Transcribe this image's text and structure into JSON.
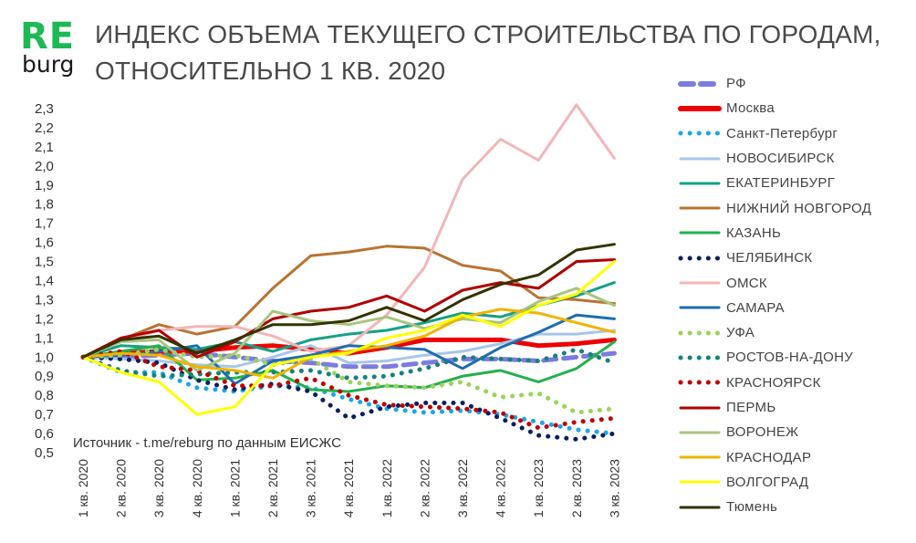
{
  "logo": {
    "re": "RE",
    "burg": "burg"
  },
  "title": {
    "line1": "ИНДЕКС ОБЪЕМА ТЕКУЩЕГО СТРОИТЕЛЬСТВА ПО ГОРОДАМ,",
    "line2": "ОТНОСИТЕЛЬНО 1 КВ. 2020"
  },
  "chart_data": {
    "type": "line",
    "title": "ИНДЕКС ОБЪЕМА ТЕКУЩЕГО СТРОИТЕЛЬСТВА ПО ГОРОДАМ, ОТНОСИТЕЛЬНО 1 КВ. 2020",
    "source": "Источник - t.me/reburg по данным ЕИСЖС",
    "ylim": [
      0.5,
      2.3
    ],
    "yticks": [
      "2,3",
      "2,2",
      "2,1",
      "2,0",
      "1,9",
      "1,8",
      "1,7",
      "1,6",
      "1,5",
      "1,4",
      "1,3",
      "1,2",
      "1,1",
      "1,0",
      "0,9",
      "0,8",
      "0,7",
      "0,6",
      "0,5"
    ],
    "categories": [
      "1 кв. 2020",
      "2 кв. 2020",
      "3 кв. 2020",
      "4 кв. 2020",
      "1 кв. 2021",
      "2 кв. 2021",
      "3 кв. 2021",
      "4 кв. 2021",
      "1 кв. 2022",
      "2 кв. 2022",
      "3 кв. 2022",
      "4 кв. 2022",
      "1 кв. 2023",
      "2 кв. 2023",
      "3 кв. 2023"
    ],
    "legend_position": "right",
    "grid": false,
    "series": [
      {
        "name": "РФ",
        "color": "#7b7be0",
        "style": "dashed",
        "values": [
          1.0,
          1.0,
          1.01,
          1.02,
          1.0,
          0.98,
          0.97,
          0.95,
          0.95,
          0.97,
          0.99,
          0.99,
          0.98,
          1.0,
          1.02
        ]
      },
      {
        "name": "Москва",
        "color": "#ee0000",
        "style": "thick",
        "values": [
          1.0,
          1.02,
          1.03,
          1.03,
          1.05,
          1.06,
          1.04,
          1.02,
          1.05,
          1.09,
          1.09,
          1.09,
          1.06,
          1.07,
          1.09
        ]
      },
      {
        "name": "Санкт-Петербург",
        "color": "#1aa7e8",
        "style": "dotted",
        "values": [
          1.0,
          0.92,
          0.92,
          0.84,
          0.82,
          0.85,
          0.84,
          0.78,
          0.73,
          0.71,
          0.72,
          0.7,
          0.66,
          0.62,
          0.6
        ]
      },
      {
        "name": "НОВОСИБИРСК",
        "color": "#a7c6e8",
        "style": "solid",
        "values": [
          1.0,
          0.99,
          0.98,
          0.96,
          0.95,
          1.0,
          1.06,
          0.97,
          0.98,
          1.01,
          1.03,
          1.07,
          1.12,
          1.12,
          1.14
        ]
      },
      {
        "name": "ЕКАТЕРИНБУРГ",
        "color": "#16a085",
        "style": "solid",
        "values": [
          1.0,
          1.06,
          1.05,
          1.04,
          1.08,
          1.03,
          1.09,
          1.12,
          1.14,
          1.18,
          1.23,
          1.21,
          1.27,
          1.32,
          1.39
        ]
      },
      {
        "name": "НИЖНИЙ НОВГОРОД",
        "color": "#b87333",
        "style": "solid",
        "values": [
          1.0,
          1.09,
          1.17,
          1.12,
          1.16,
          1.36,
          1.53,
          1.55,
          1.58,
          1.57,
          1.48,
          1.45,
          1.31,
          1.3,
          1.28
        ]
      },
      {
        "name": "КАЗАНЬ",
        "color": "#22b14c",
        "style": "solid",
        "values": [
          1.0,
          1.03,
          1.06,
          0.88,
          0.89,
          0.93,
          0.83,
          0.82,
          0.85,
          0.84,
          0.9,
          0.93,
          0.87,
          0.94,
          1.08
        ]
      },
      {
        "name": "ЧЕЛЯБИНСК",
        "color": "#0a1f5c",
        "style": "dotted",
        "values": [
          1.0,
          0.99,
          0.97,
          0.88,
          0.83,
          0.86,
          0.82,
          0.68,
          0.74,
          0.76,
          0.76,
          0.68,
          0.59,
          0.57,
          0.6
        ]
      },
      {
        "name": "ОМСК",
        "color": "#f2b6b6",
        "style": "solid",
        "values": [
          1.0,
          1.08,
          1.14,
          1.16,
          1.16,
          1.11,
          1.03,
          1.06,
          1.22,
          1.47,
          1.93,
          2.14,
          2.03,
          2.32,
          2.04
        ]
      },
      {
        "name": "САМАРА",
        "color": "#1f6db0",
        "style": "solid",
        "values": [
          1.0,
          1.01,
          1.03,
          1.06,
          0.86,
          0.98,
          1.01,
          1.06,
          1.05,
          1.04,
          0.94,
          1.05,
          1.13,
          1.22,
          1.2
        ]
      },
      {
        "name": "УФА",
        "color": "#9ad35a",
        "style": "dotted",
        "values": [
          1.0,
          1.01,
          1.04,
          1.0,
          1.01,
          0.96,
          0.99,
          0.87,
          0.85,
          0.84,
          0.87,
          0.79,
          0.81,
          0.71,
          0.73
        ]
      },
      {
        "name": "РОСТОВ-НА-ДОНУ",
        "color": "#17807d",
        "style": "dotted",
        "values": [
          1.0,
          0.93,
          0.9,
          0.91,
          0.92,
          0.92,
          0.93,
          0.89,
          0.9,
          0.94,
          1.0,
          0.99,
          0.98,
          1.04,
          0.97
        ]
      },
      {
        "name": "КРАСНОЯРСК",
        "color": "#c00000",
        "style": "dotted",
        "values": [
          1.0,
          1.03,
          0.95,
          0.93,
          0.85,
          0.85,
          0.89,
          0.8,
          0.75,
          0.74,
          0.73,
          0.71,
          0.63,
          0.66,
          0.68
        ]
      },
      {
        "name": "ПЕРМЬ",
        "color": "#b00000",
        "style": "solid",
        "values": [
          1.0,
          1.1,
          1.14,
          1.0,
          1.08,
          1.2,
          1.24,
          1.26,
          1.32,
          1.24,
          1.35,
          1.39,
          1.36,
          1.5,
          1.51
        ]
      },
      {
        "name": "ВОРОНЕЖ",
        "color": "#a9c47f",
        "style": "solid",
        "values": [
          1.0,
          1.08,
          1.09,
          0.93,
          1.02,
          1.24,
          1.19,
          1.17,
          1.21,
          1.15,
          1.2,
          1.18,
          1.29,
          1.36,
          1.27
        ]
      },
      {
        "name": "КРАСНОДАР",
        "color": "#f0b400",
        "style": "solid",
        "values": [
          1.0,
          1.02,
          1.01,
          0.95,
          0.93,
          0.89,
          1.0,
          1.03,
          1.06,
          1.11,
          1.21,
          1.25,
          1.23,
          1.18,
          1.13
        ]
      },
      {
        "name": "ВОЛГОГРАД",
        "color": "#ffff00",
        "style": "solid",
        "values": [
          1.0,
          0.92,
          0.87,
          0.7,
          0.74,
          0.96,
          1.0,
          1.02,
          1.1,
          1.14,
          1.22,
          1.16,
          1.27,
          1.33,
          1.5
        ]
      },
      {
        "name": "Тюмень",
        "color": "#333300",
        "style": "solid",
        "values": [
          1.0,
          1.09,
          1.11,
          1.02,
          1.09,
          1.17,
          1.17,
          1.19,
          1.26,
          1.19,
          1.3,
          1.38,
          1.43,
          1.56,
          1.59
        ]
      }
    ]
  }
}
